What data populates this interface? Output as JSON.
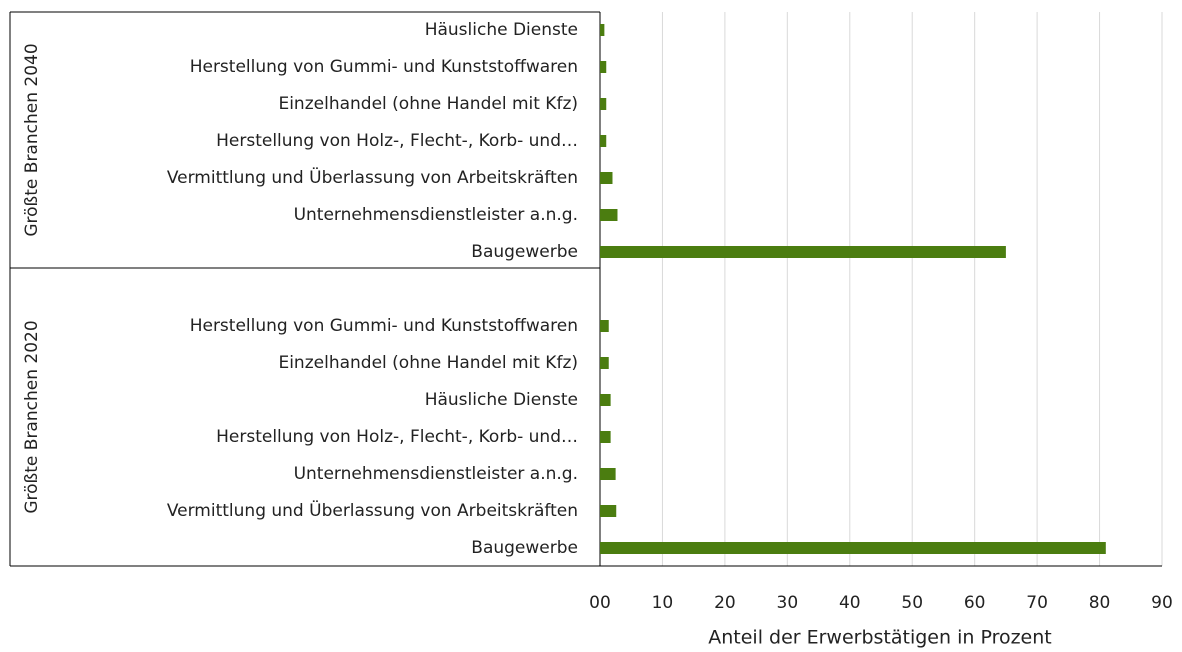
{
  "chart_data": {
    "type": "bar",
    "orientation": "horizontal",
    "color": "#4b7d10",
    "xlabel": "Anteil der Erwerbstätigen in Prozent",
    "xlim": [
      0,
      90
    ],
    "xticks": [
      {
        "value": 0,
        "label": "00"
      },
      10,
      20,
      30,
      40,
      50,
      60,
      70,
      80,
      90
    ],
    "grid": true,
    "groups": [
      {
        "name": "Größte Branchen 2040",
        "categories": [
          "Häusliche Dienste",
          "Herstellung von Gummi- und Kunststoffwaren",
          "Einzelhandel (ohne Handel mit Kfz)",
          "Herstellung von Holz-, Flecht-, Korb- und…",
          "Vermittlung und Überlassung von Arbeitskräften",
          "Unternehmensdienstleister a.n.g.",
          "Baugewerbe"
        ],
        "values": [
          0.7,
          1.0,
          1.0,
          1.0,
          2.0,
          2.8,
          65
        ]
      },
      {
        "name": "Größte Branchen 2020",
        "categories": [
          "Herstellung von Gummi- und Kunststoffwaren",
          "Einzelhandel (ohne Handel mit Kfz)",
          "Häusliche Dienste",
          "Herstellung von Holz-, Flecht-, Korb- und…",
          "Unternehmensdienstleister a.n.g.",
          "Vermittlung und Überlassung von Arbeitskräften",
          "Baugewerbe"
        ],
        "values": [
          1.4,
          1.4,
          1.7,
          1.7,
          2.5,
          2.6,
          81
        ]
      }
    ]
  }
}
